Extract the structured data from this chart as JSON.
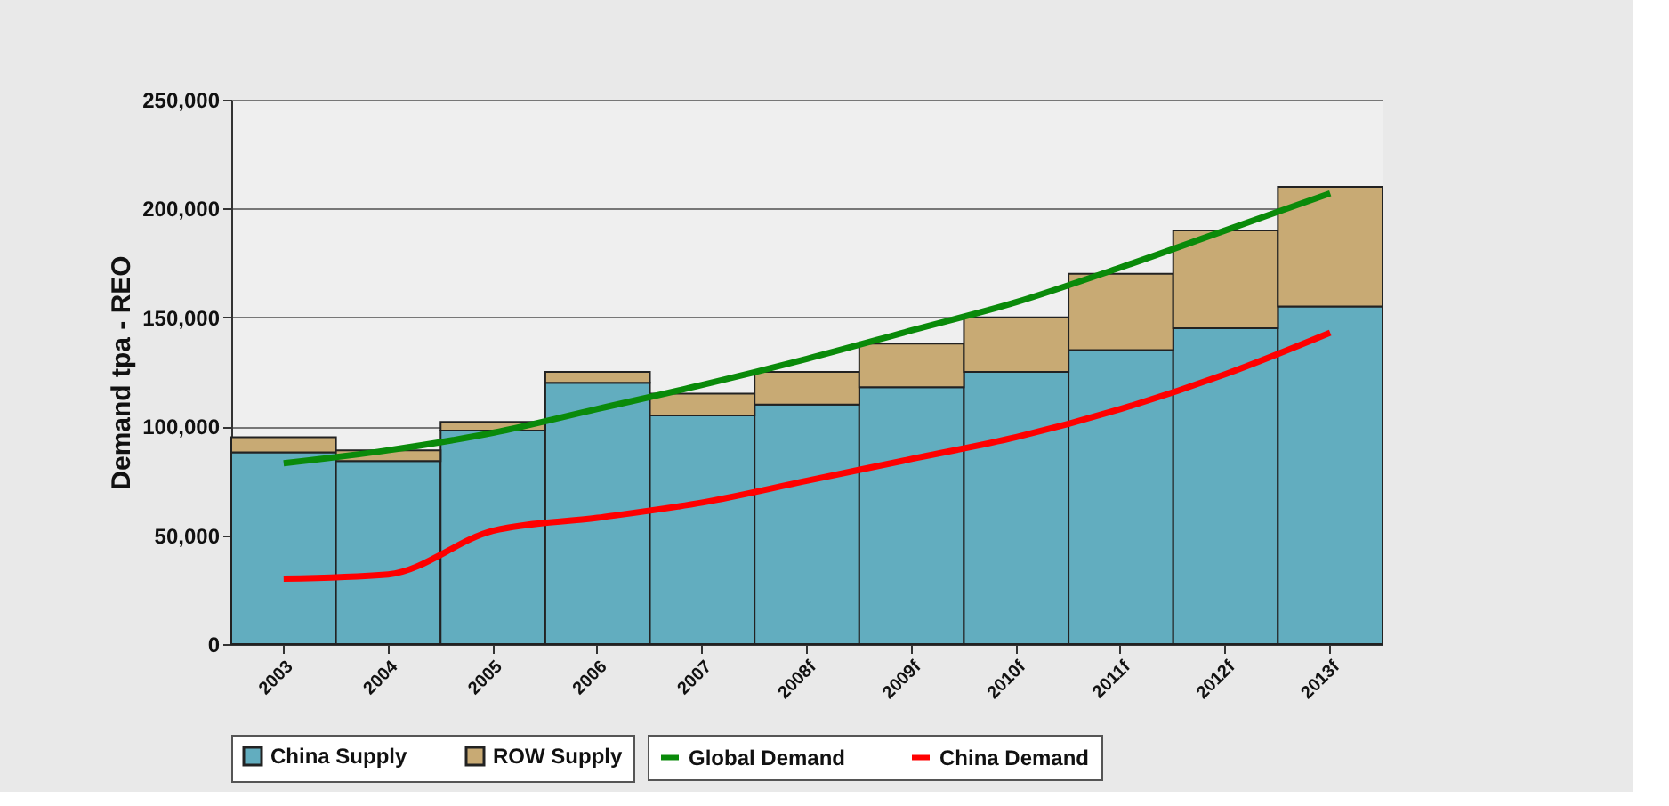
{
  "chart_data": {
    "type": "bar",
    "stacked": true,
    "ylabel": "Demand tpa - REO",
    "categories": [
      "2003",
      "2004",
      "2005",
      "2006",
      "2007",
      "2008f",
      "2009f",
      "2010f",
      "2011f",
      "2012f",
      "2013f"
    ],
    "series": [
      {
        "name": "China Supply",
        "color": "#62adbf",
        "values": [
          88000,
          84000,
          98000,
          120000,
          105000,
          110000,
          118000,
          125000,
          135000,
          145000,
          155000
        ]
      },
      {
        "name": "ROW Supply",
        "color": "#c8aa74",
        "values": [
          7000,
          5000,
          4000,
          5000,
          10000,
          15000,
          20000,
          25000,
          35000,
          45000,
          55000
        ]
      },
      {
        "name": "Global Demand",
        "type": "line",
        "color": "#0a8a0a",
        "values": [
          83000,
          89000,
          97000,
          108000,
          119000,
          131000,
          144000,
          157000,
          173000,
          190000,
          207000
        ]
      },
      {
        "name": "China Demand",
        "type": "line",
        "color": "#ff0000",
        "values": [
          30000,
          32000,
          52000,
          58000,
          65000,
          75000,
          85000,
          95000,
          108000,
          124000,
          143000
        ]
      }
    ],
    "ylim": [
      0,
      250000
    ],
    "yticks": [
      {
        "value": 0,
        "label": "0"
      },
      {
        "value": 50000,
        "label": "50,000"
      },
      {
        "value": 100000,
        "label": "100,000"
      },
      {
        "value": 150000,
        "label": "150,000"
      },
      {
        "value": 200000,
        "label": "200,000"
      },
      {
        "value": 250000,
        "label": "250,000"
      }
    ],
    "grid": "y",
    "legend": "bottom"
  }
}
